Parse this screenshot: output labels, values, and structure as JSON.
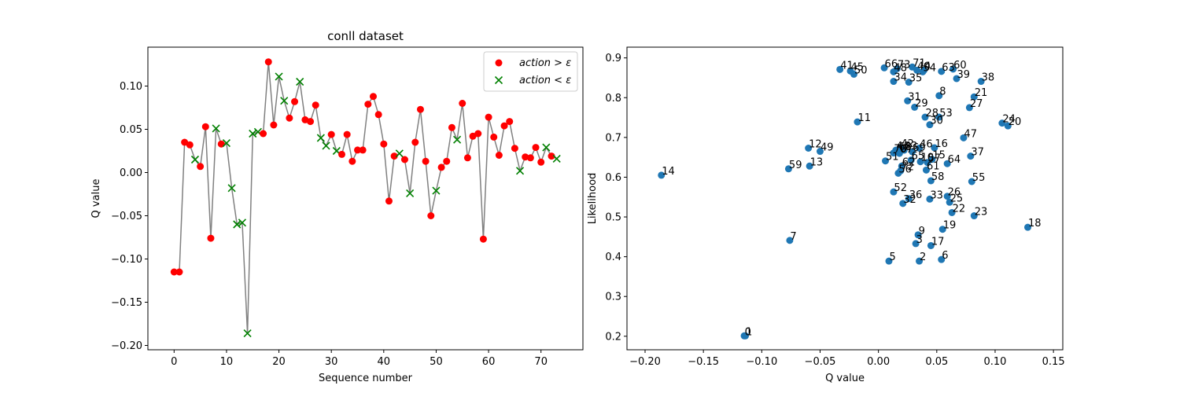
{
  "chart_data": [
    {
      "type": "line",
      "title": "conll dataset",
      "xlabel": "Sequence number",
      "ylabel": "Q value",
      "xlim": [
        -5,
        78
      ],
      "ylim": [
        -0.205,
        0.145
      ],
      "xticks": [
        0,
        10,
        20,
        30,
        40,
        50,
        60,
        70
      ],
      "xtick_labels": [
        "0",
        "10",
        "20",
        "30",
        "40",
        "50",
        "60",
        "70"
      ],
      "yticks": [
        -0.2,
        -0.15,
        -0.1,
        -0.05,
        0.0,
        0.05,
        0.1
      ],
      "ytick_labels": [
        "−0.20",
        "−0.15",
        "−0.10",
        "−0.05",
        "0.00",
        "0.05",
        "0.10"
      ],
      "grid": false,
      "legend_position": "top-right",
      "line_color": "#808080",
      "x": [
        0,
        1,
        2,
        3,
        4,
        5,
        6,
        7,
        8,
        9,
        10,
        11,
        12,
        13,
        14,
        15,
        16,
        17,
        18,
        19,
        20,
        21,
        22,
        23,
        24,
        25,
        26,
        27,
        28,
        29,
        30,
        31,
        32,
        33,
        34,
        35,
        36,
        37,
        38,
        39,
        40,
        41,
        42,
        43,
        44,
        45,
        46,
        47,
        48,
        49,
        50,
        51,
        52,
        53,
        54,
        55,
        56,
        57,
        58,
        59,
        60,
        61,
        62,
        63,
        64,
        65,
        66,
        67,
        68,
        69,
        70,
        71,
        72,
        73
      ],
      "y": [
        -0.115,
        -0.115,
        0.035,
        0.032,
        0.015,
        0.007,
        0.053,
        -0.076,
        0.051,
        0.033,
        0.034,
        -0.018,
        -0.06,
        -0.058,
        -0.186,
        0.045,
        0.047,
        0.045,
        0.128,
        0.055,
        0.111,
        0.083,
        0.063,
        0.082,
        0.105,
        0.061,
        0.059,
        0.078,
        0.04,
        0.031,
        0.044,
        0.025,
        0.021,
        0.044,
        0.013,
        0.026,
        0.026,
        0.079,
        0.088,
        0.067,
        0.033,
        -0.033,
        0.019,
        0.022,
        0.015,
        -0.024,
        0.035,
        0.073,
        0.013,
        -0.05,
        -0.021,
        0.006,
        0.013,
        0.052,
        0.038,
        0.08,
        0.017,
        0.042,
        0.045,
        -0.077,
        0.064,
        0.041,
        0.02,
        0.054,
        0.059,
        0.028,
        0.002,
        0.018,
        0.017,
        0.029,
        0.012,
        0.029,
        0.019,
        0.016
      ],
      "marker_kind": [
        "o",
        "o",
        "o",
        "o",
        "x",
        "o",
        "o",
        "o",
        "x",
        "o",
        "x",
        "x",
        "x",
        "x",
        "x",
        "x",
        "x",
        "o",
        "o",
        "o",
        "x",
        "x",
        "o",
        "o",
        "x",
        "o",
        "o",
        "o",
        "x",
        "x",
        "o",
        "x",
        "o",
        "o",
        "o",
        "o",
        "o",
        "o",
        "o",
        "o",
        "o",
        "o",
        "o",
        "x",
        "o",
        "x",
        "o",
        "o",
        "o",
        "o",
        "x",
        "o",
        "o",
        "o",
        "x",
        "o",
        "o",
        "o",
        "o",
        "o",
        "o",
        "o",
        "o",
        "o",
        "o",
        "o",
        "x",
        "o",
        "o",
        "o",
        "o",
        "x",
        "o",
        "x"
      ],
      "series": [
        {
          "name": "action > ε",
          "legend_main": "action",
          "legend_op": " > ",
          "legend_sym": "ε",
          "marker": "o",
          "color": "#ff0000"
        },
        {
          "name": "action < ε",
          "legend_main": "action",
          "legend_op": " < ",
          "legend_sym": "ε",
          "marker": "x",
          "color": "#008000"
        }
      ]
    },
    {
      "type": "scatter",
      "title": "",
      "xlabel": "Q value",
      "ylabel": "Likelihood",
      "xlim": [
        -0.2155,
        0.158
      ],
      "ylim": [
        0.166,
        0.927
      ],
      "xticks": [
        -0.2,
        -0.15,
        -0.1,
        -0.05,
        0.0,
        0.05,
        0.1,
        0.15
      ],
      "xtick_labels": [
        "−0.20",
        "−0.15",
        "−0.10",
        "−0.05",
        "0.00",
        "0.05",
        "0.10",
        "0.15"
      ],
      "yticks": [
        0.2,
        0.3,
        0.4,
        0.5,
        0.6,
        0.7,
        0.8,
        0.9
      ],
      "ytick_labels": [
        "0.2",
        "0.3",
        "0.4",
        "0.5",
        "0.6",
        "0.7",
        "0.8",
        "0.9"
      ],
      "grid": false,
      "color": "#1f77b4",
      "points": [
        {
          "label": "0",
          "x": -0.115,
          "y": 0.201
        },
        {
          "label": "1",
          "x": -0.114,
          "y": 0.201
        },
        {
          "label": "2",
          "x": 0.035,
          "y": 0.389
        },
        {
          "label": "3",
          "x": 0.032,
          "y": 0.433
        },
        {
          "label": "4",
          "x": 0.039,
          "y": 0.869
        },
        {
          "label": "5",
          "x": 0.009,
          "y": 0.389
        },
        {
          "label": "6",
          "x": 0.054,
          "y": 0.393
        },
        {
          "label": "7",
          "x": -0.076,
          "y": 0.441
        },
        {
          "label": "8",
          "x": 0.052,
          "y": 0.805
        },
        {
          "label": "9",
          "x": 0.034,
          "y": 0.455
        },
        {
          "label": "10",
          "x": 0.036,
          "y": 0.639
        },
        {
          "label": "11",
          "x": -0.018,
          "y": 0.739
        },
        {
          "label": "12",
          "x": -0.06,
          "y": 0.673
        },
        {
          "label": "13",
          "x": -0.059,
          "y": 0.628
        },
        {
          "label": "14",
          "x": -0.186,
          "y": 0.605
        },
        {
          "label": "15",
          "x": 0.046,
          "y": 0.645
        },
        {
          "label": "16",
          "x": 0.048,
          "y": 0.674
        },
        {
          "label": "17",
          "x": 0.045,
          "y": 0.428
        },
        {
          "label": "18",
          "x": 0.128,
          "y": 0.474
        },
        {
          "label": "19",
          "x": 0.055,
          "y": 0.469
        },
        {
          "label": "20",
          "x": 0.111,
          "y": 0.729
        },
        {
          "label": "21",
          "x": 0.082,
          "y": 0.802
        },
        {
          "label": "22",
          "x": 0.063,
          "y": 0.511
        },
        {
          "label": "23",
          "x": 0.082,
          "y": 0.503
        },
        {
          "label": "24",
          "x": 0.106,
          "y": 0.736
        },
        {
          "label": "25",
          "x": 0.061,
          "y": 0.537
        },
        {
          "label": "26",
          "x": 0.059,
          "y": 0.552
        },
        {
          "label": "27",
          "x": 0.078,
          "y": 0.775
        },
        {
          "label": "28",
          "x": 0.04,
          "y": 0.751
        },
        {
          "label": "29",
          "x": 0.031,
          "y": 0.776
        },
        {
          "label": "30",
          "x": 0.044,
          "y": 0.732
        },
        {
          "label": "31",
          "x": 0.025,
          "y": 0.792
        },
        {
          "label": "32",
          "x": 0.021,
          "y": 0.534
        },
        {
          "label": "33",
          "x": 0.044,
          "y": 0.545
        },
        {
          "label": "34",
          "x": 0.013,
          "y": 0.841
        },
        {
          "label": "35",
          "x": 0.026,
          "y": 0.839
        },
        {
          "label": "36",
          "x": 0.026,
          "y": 0.546
        },
        {
          "label": "37",
          "x": 0.079,
          "y": 0.653
        },
        {
          "label": "38",
          "x": 0.088,
          "y": 0.841
        },
        {
          "label": "39",
          "x": 0.067,
          "y": 0.848
        },
        {
          "label": "40",
          "x": 0.033,
          "y": 0.869
        },
        {
          "label": "41",
          "x": -0.033,
          "y": 0.871
        },
        {
          "label": "42",
          "x": 0.019,
          "y": 0.674
        },
        {
          "label": "43",
          "x": 0.022,
          "y": 0.668
        },
        {
          "label": "44",
          "x": 0.015,
          "y": 0.668
        },
        {
          "label": "45",
          "x": -0.024,
          "y": 0.867
        },
        {
          "label": "46",
          "x": 0.035,
          "y": 0.673
        },
        {
          "label": "47",
          "x": 0.073,
          "y": 0.699
        },
        {
          "label": "48",
          "x": 0.013,
          "y": 0.865
        },
        {
          "label": "49",
          "x": -0.05,
          "y": 0.665
        },
        {
          "label": "50",
          "x": -0.021,
          "y": 0.859
        },
        {
          "label": "51",
          "x": 0.006,
          "y": 0.641
        },
        {
          "label": "52",
          "x": 0.013,
          "y": 0.563
        },
        {
          "label": "53",
          "x": 0.052,
          "y": 0.751
        },
        {
          "label": "54",
          "x": 0.038,
          "y": 0.865
        },
        {
          "label": "55",
          "x": 0.08,
          "y": 0.589
        },
        {
          "label": "56",
          "x": 0.017,
          "y": 0.61
        },
        {
          "label": "57",
          "x": 0.042,
          "y": 0.637
        },
        {
          "label": "58",
          "x": 0.045,
          "y": 0.591
        },
        {
          "label": "59",
          "x": -0.077,
          "y": 0.621
        },
        {
          "label": "60",
          "x": 0.064,
          "y": 0.872
        },
        {
          "label": "61",
          "x": 0.041,
          "y": 0.618
        },
        {
          "label": "62",
          "x": 0.02,
          "y": 0.628
        },
        {
          "label": "63",
          "x": 0.054,
          "y": 0.866
        },
        {
          "label": "64",
          "x": 0.059,
          "y": 0.634
        },
        {
          "label": "65",
          "x": 0.028,
          "y": 0.643
        },
        {
          "label": "66",
          "x": 0.005,
          "y": 0.875
        },
        {
          "label": "67",
          "x": 0.018,
          "y": 0.66
        },
        {
          "label": "68",
          "x": 0.017,
          "y": 0.666
        },
        {
          "label": "69",
          "x": 0.029,
          "y": 0.664
        },
        {
          "label": "70",
          "x": 0.013,
          "y": 0.661
        },
        {
          "label": "71",
          "x": 0.029,
          "y": 0.877
        },
        {
          "label": "72",
          "x": 0.019,
          "y": 0.616
        },
        {
          "label": "73",
          "x": 0.016,
          "y": 0.873
        }
      ]
    }
  ]
}
